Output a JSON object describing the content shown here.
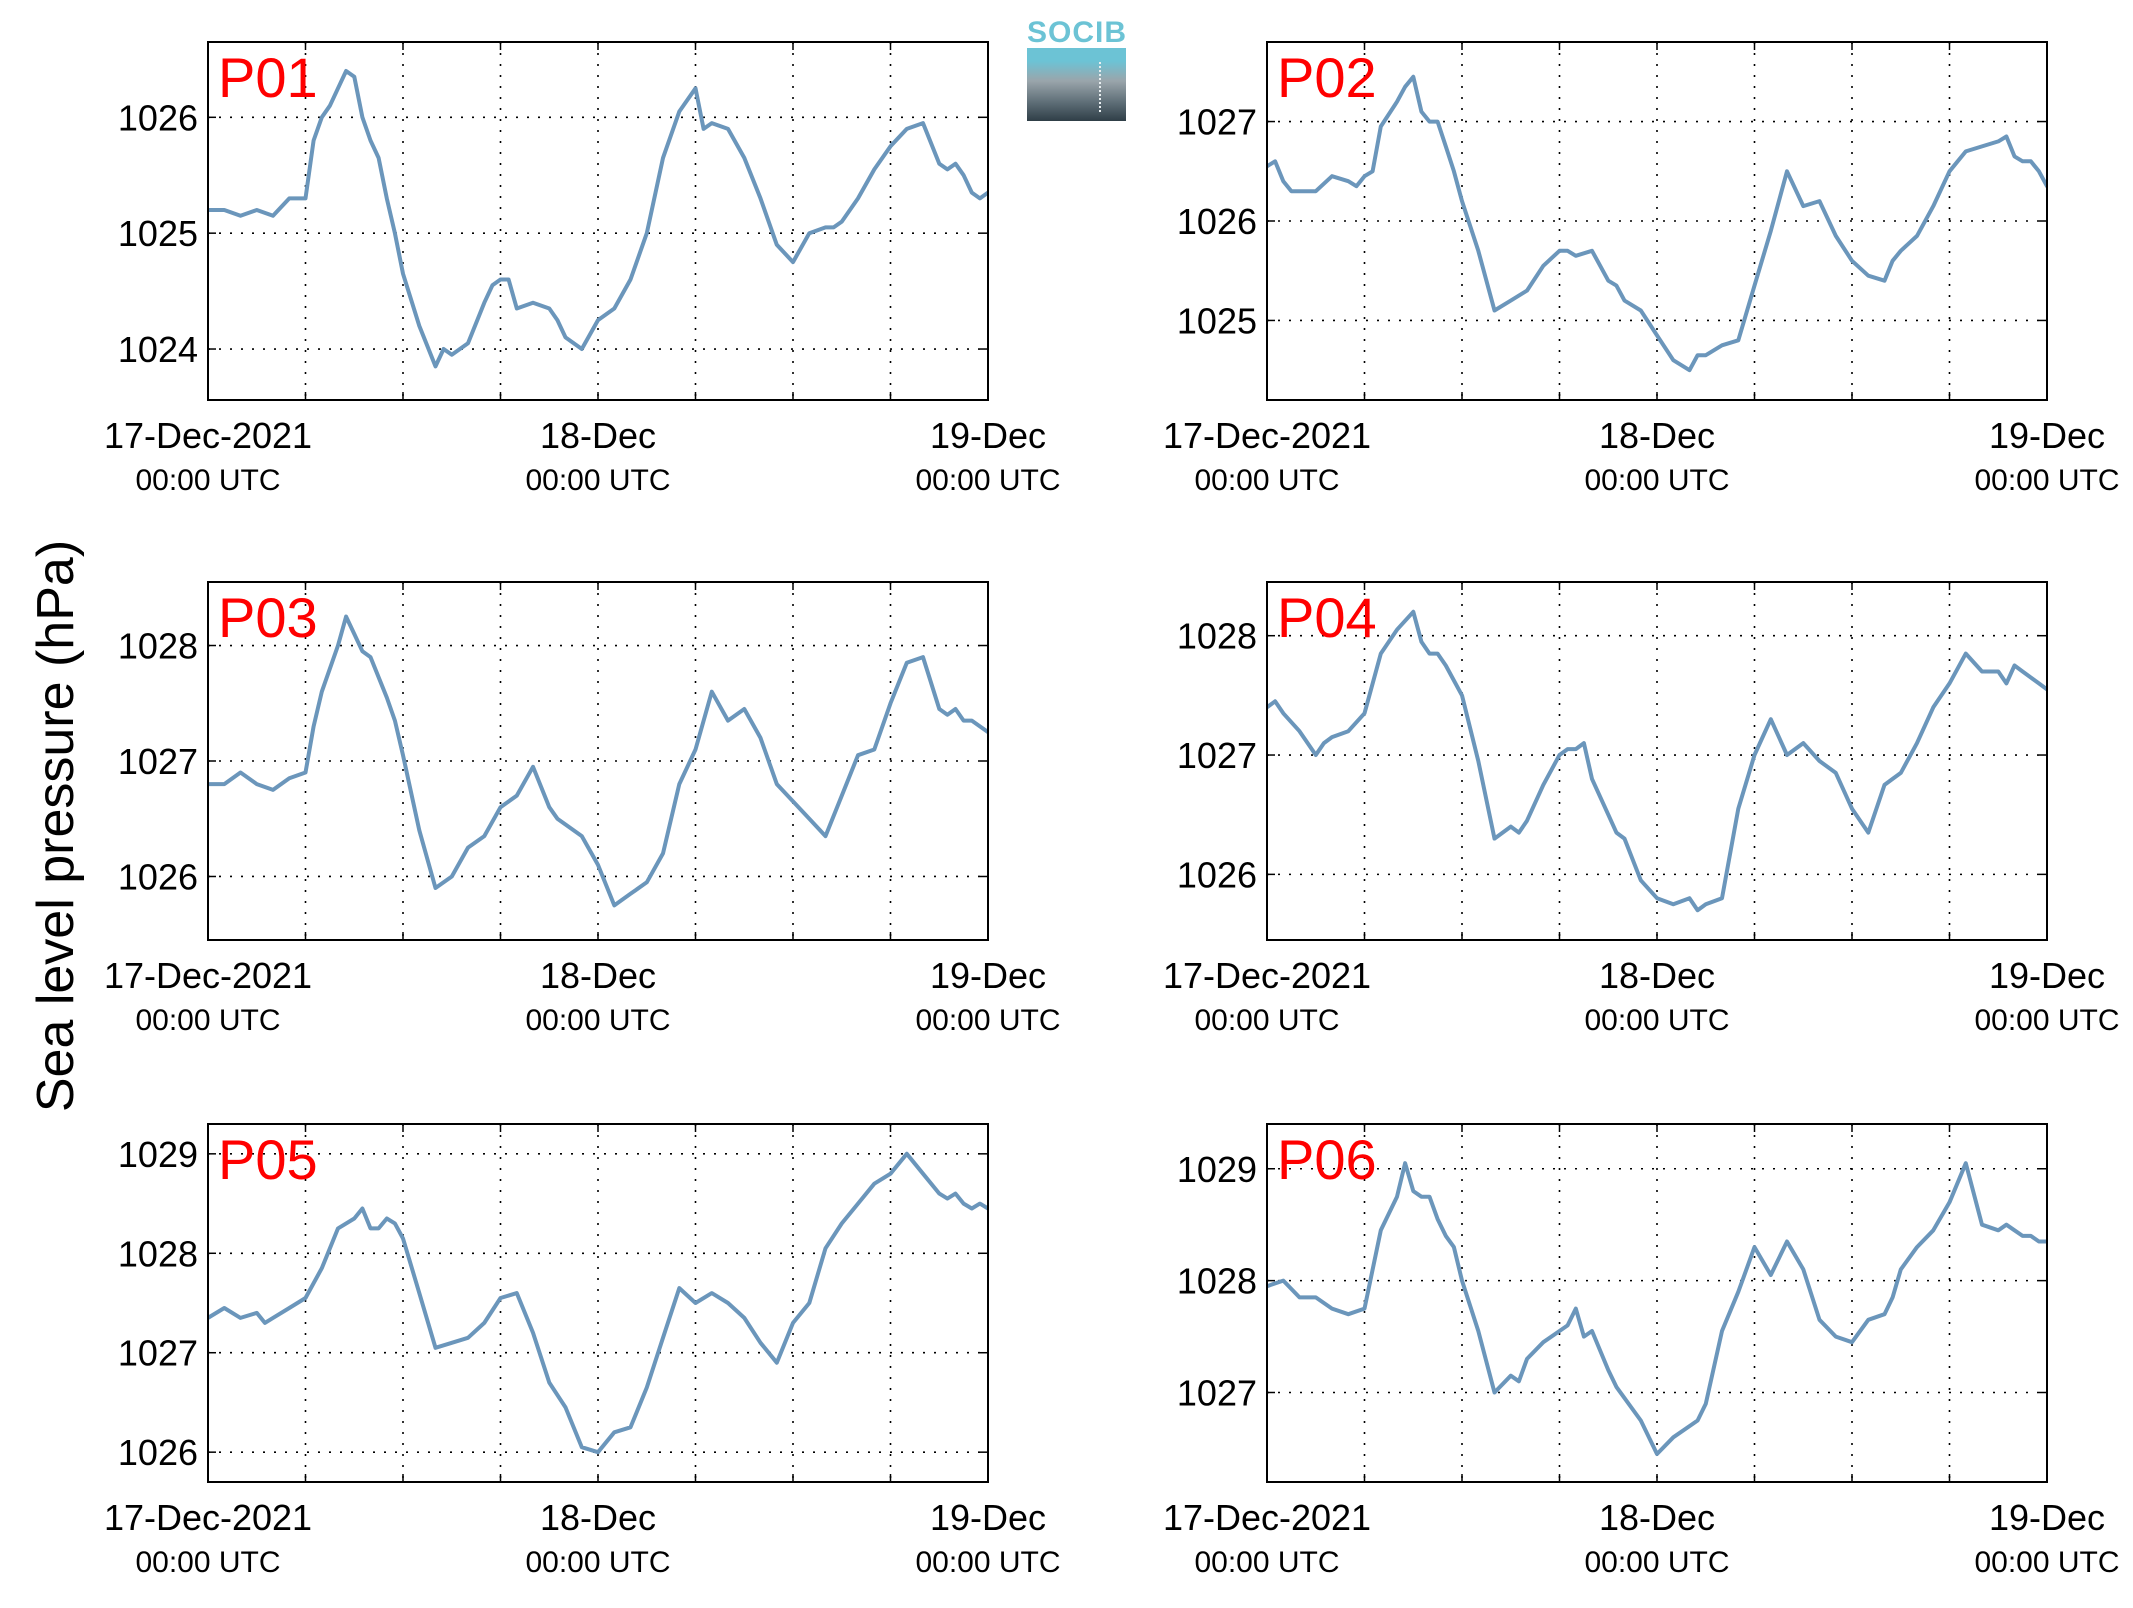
{
  "figure": {
    "ylabel": "Sea level pressure (hPa)",
    "logo_text": "SOCIB",
    "line_color": "#6b96bb",
    "label_color": "#ff0000"
  },
  "chart_data": [
    {
      "type": "line",
      "label": "P01",
      "x_unit": "hours since 17-Dec-2021 00:00 UTC",
      "xlim": [
        0,
        48
      ],
      "ylim": [
        1023.56,
        1026.65
      ],
      "yticks": [
        1024,
        1025,
        1026
      ],
      "x": [
        0,
        1,
        2,
        3,
        4,
        5,
        6,
        6.5,
        7,
        7.5,
        8,
        8.5,
        9,
        9.5,
        10,
        10.5,
        11,
        11.5,
        12,
        13,
        14,
        14.5,
        15,
        16,
        17,
        17.5,
        18,
        18.5,
        19,
        20,
        21,
        21.5,
        22,
        23,
        24,
        25,
        26,
        27,
        28,
        29,
        30,
        30.5,
        31,
        32,
        33,
        34,
        35,
        36,
        37,
        38,
        38.5,
        39,
        40,
        41,
        42,
        43,
        44,
        45,
        45.5,
        46,
        46.5,
        47,
        47.5,
        48
      ],
      "y": [
        1025.2,
        1025.2,
        1025.15,
        1025.2,
        1025.15,
        1025.3,
        1025.3,
        1025.8,
        1026.0,
        1026.1,
        1026.25,
        1026.4,
        1026.35,
        1026.0,
        1025.8,
        1025.65,
        1025.3,
        1025.0,
        1024.65,
        1024.2,
        1023.85,
        1024.0,
        1023.95,
        1024.05,
        1024.4,
        1024.55,
        1024.6,
        1024.6,
        1024.35,
        1024.4,
        1024.35,
        1024.25,
        1024.1,
        1024.0,
        1024.25,
        1024.35,
        1024.6,
        1025.0,
        1025.65,
        1026.05,
        1026.25,
        1025.9,
        1025.95,
        1025.9,
        1025.65,
        1025.3,
        1024.9,
        1024.75,
        1025.0,
        1025.05,
        1025.05,
        1025.1,
        1025.3,
        1025.55,
        1025.75,
        1025.9,
        1025.95,
        1025.6,
        1025.55,
        1025.6,
        1025.5,
        1025.35,
        1025.3,
        1025.35
      ]
    },
    {
      "type": "line",
      "label": "P02",
      "x_unit": "hours since 17-Dec-2021 00:00 UTC",
      "xlim": [
        0,
        48
      ],
      "ylim": [
        1024.2,
        1027.8
      ],
      "yticks": [
        1025,
        1026,
        1027
      ],
      "x": [
        0,
        0.5,
        1,
        1.5,
        2,
        3,
        4,
        5,
        5.5,
        6,
        6.5,
        7,
        8,
        8.5,
        9,
        9.5,
        10,
        10.5,
        11,
        11.5,
        12,
        13,
        14,
        15,
        16,
        17,
        18,
        18.5,
        19,
        20,
        21,
        21.5,
        22,
        23,
        24,
        25,
        26,
        26.5,
        27,
        28,
        29,
        30,
        31,
        32,
        33,
        34,
        35,
        36,
        37,
        38,
        38.5,
        39,
        40,
        41,
        42,
        43,
        44,
        45,
        45.5,
        46,
        46.5,
        47,
        47.5,
        48
      ],
      "y": [
        1026.55,
        1026.6,
        1026.4,
        1026.3,
        1026.3,
        1026.3,
        1026.45,
        1026.4,
        1026.35,
        1026.45,
        1026.5,
        1026.95,
        1027.2,
        1027.35,
        1027.45,
        1027.1,
        1027.0,
        1027.0,
        1026.75,
        1026.5,
        1026.2,
        1025.7,
        1025.1,
        1025.2,
        1025.3,
        1025.55,
        1025.7,
        1025.7,
        1025.65,
        1025.7,
        1025.4,
        1025.35,
        1025.2,
        1025.1,
        1024.85,
        1024.6,
        1024.5,
        1024.65,
        1024.65,
        1024.75,
        1024.8,
        1025.35,
        1025.9,
        1026.5,
        1026.15,
        1026.2,
        1025.85,
        1025.6,
        1025.45,
        1025.4,
        1025.6,
        1025.7,
        1025.85,
        1026.15,
        1026.5,
        1026.7,
        1026.75,
        1026.8,
        1026.85,
        1026.65,
        1026.6,
        1026.6,
        1026.5,
        1026.35
      ]
    },
    {
      "type": "line",
      "label": "P03",
      "x_unit": "hours since 17-Dec-2021 00:00 UTC",
      "xlim": [
        0,
        48
      ],
      "ylim": [
        1025.45,
        1028.55
      ],
      "yticks": [
        1026,
        1027,
        1028
      ],
      "x": [
        0,
        1,
        2,
        3,
        4,
        5,
        6,
        6.5,
        7,
        8,
        8.5,
        9,
        9.5,
        10,
        11,
        11.5,
        12,
        13,
        14,
        15,
        16,
        17,
        18,
        19,
        20,
        21,
        21.5,
        22,
        23,
        24,
        25,
        26,
        27,
        28,
        29,
        30,
        31,
        32,
        33,
        34,
        35,
        36,
        37,
        38,
        39,
        40,
        41,
        42,
        43,
        44,
        45,
        45.5,
        46,
        46.5,
        47,
        47.5,
        48
      ],
      "y": [
        1026.8,
        1026.8,
        1026.9,
        1026.8,
        1026.75,
        1026.85,
        1026.9,
        1027.3,
        1027.6,
        1028.0,
        1028.25,
        1028.1,
        1027.95,
        1027.9,
        1027.55,
        1027.35,
        1027.05,
        1026.4,
        1025.9,
        1026.0,
        1026.25,
        1026.35,
        1026.6,
        1026.7,
        1026.95,
        1026.6,
        1026.5,
        1026.45,
        1026.35,
        1026.1,
        1025.75,
        1025.85,
        1025.95,
        1026.2,
        1026.8,
        1027.1,
        1027.6,
        1027.35,
        1027.45,
        1027.2,
        1026.8,
        1026.65,
        1026.5,
        1026.35,
        1026.7,
        1027.05,
        1027.1,
        1027.5,
        1027.85,
        1027.9,
        1027.45,
        1027.4,
        1027.45,
        1027.35,
        1027.35,
        1027.3,
        1027.25
      ]
    },
    {
      "type": "line",
      "label": "P04",
      "x_unit": "hours since 17-Dec-2021 00:00 UTC",
      "xlim": [
        0,
        48
      ],
      "ylim": [
        1025.45,
        1028.45
      ],
      "yticks": [
        1026,
        1027,
        1028
      ],
      "x": [
        0,
        0.5,
        1,
        2,
        3,
        3.5,
        4,
        5,
        6,
        7,
        8,
        9,
        9.5,
        10,
        10.5,
        11,
        12,
        13,
        14,
        15,
        15.5,
        16,
        17,
        18,
        18.5,
        19,
        19.5,
        20,
        21,
        21.5,
        22,
        23,
        24,
        25,
        26,
        26.5,
        27,
        28,
        29,
        30,
        31,
        32,
        33,
        34,
        35,
        36,
        37,
        38,
        38.5,
        39,
        40,
        41,
        42,
        43,
        44,
        45,
        45.5,
        46,
        46.5,
        47,
        47.5,
        48
      ],
      "y": [
        1027.4,
        1027.45,
        1027.35,
        1027.2,
        1027.0,
        1027.1,
        1027.15,
        1027.2,
        1027.35,
        1027.85,
        1028.05,
        1028.2,
        1027.95,
        1027.85,
        1027.85,
        1027.75,
        1027.5,
        1026.95,
        1026.3,
        1026.4,
        1026.35,
        1026.45,
        1026.75,
        1027.0,
        1027.05,
        1027.05,
        1027.1,
        1026.8,
        1026.5,
        1026.35,
        1026.3,
        1025.95,
        1025.8,
        1025.75,
        1025.8,
        1025.7,
        1025.75,
        1025.8,
        1026.55,
        1027.0,
        1027.3,
        1027.0,
        1027.1,
        1026.95,
        1026.85,
        1026.55,
        1026.35,
        1026.75,
        1026.8,
        1026.85,
        1027.1,
        1027.4,
        1027.6,
        1027.85,
        1027.7,
        1027.7,
        1027.6,
        1027.75,
        1027.7,
        1027.65,
        1027.6,
        1027.55
      ]
    },
    {
      "type": "line",
      "label": "P05",
      "x_unit": "hours since 17-Dec-2021 00:00 UTC",
      "xlim": [
        0,
        48
      ],
      "ylim": [
        1025.7,
        1029.3
      ],
      "yticks": [
        1026,
        1027,
        1028,
        1029
      ],
      "x": [
        0,
        1,
        2,
        3,
        3.5,
        4,
        5,
        6,
        7,
        8,
        9,
        9.5,
        10,
        10.5,
        11,
        11.5,
        12,
        13,
        14,
        15,
        16,
        17,
        18,
        19,
        20,
        21,
        22,
        23,
        24,
        25,
        26,
        27,
        28,
        29,
        30,
        31,
        32,
        33,
        34,
        35,
        36,
        37,
        38,
        39,
        40,
        41,
        42,
        43,
        44,
        45,
        45.5,
        46,
        46.5,
        47,
        47.5,
        48
      ],
      "y": [
        1027.35,
        1027.45,
        1027.35,
        1027.4,
        1027.3,
        1027.35,
        1027.45,
        1027.55,
        1027.85,
        1028.25,
        1028.35,
        1028.45,
        1028.25,
        1028.25,
        1028.35,
        1028.3,
        1028.15,
        1027.6,
        1027.05,
        1027.1,
        1027.15,
        1027.3,
        1027.55,
        1027.6,
        1027.2,
        1026.7,
        1026.45,
        1026.05,
        1026.0,
        1026.2,
        1026.25,
        1026.65,
        1027.15,
        1027.65,
        1027.5,
        1027.6,
        1027.5,
        1027.35,
        1027.1,
        1026.9,
        1027.3,
        1027.5,
        1028.05,
        1028.3,
        1028.5,
        1028.7,
        1028.8,
        1029.0,
        1028.8,
        1028.6,
        1028.55,
        1028.6,
        1028.5,
        1028.45,
        1028.5,
        1028.45
      ]
    },
    {
      "type": "line",
      "label": "P06",
      "x_unit": "hours since 17-Dec-2021 00:00 UTC",
      "xlim": [
        0,
        48
      ],
      "ylim": [
        1026.2,
        1029.4
      ],
      "yticks": [
        1027,
        1028,
        1029
      ],
      "x": [
        0,
        1,
        2,
        3,
        4,
        5,
        6,
        7,
        8,
        8.5,
        9,
        9.5,
        10,
        10.5,
        11,
        11.5,
        12,
        13,
        14,
        15,
        15.5,
        16,
        17,
        18,
        18.5,
        19,
        19.5,
        20,
        21,
        21.5,
        22,
        23,
        24,
        25,
        26,
        26.5,
        27,
        28,
        29,
        30,
        31,
        32,
        33,
        34,
        35,
        36,
        37,
        38,
        38.5,
        39,
        40,
        41,
        42,
        43,
        44,
        45,
        45.5,
        46,
        46.5,
        47,
        47.5,
        48
      ],
      "y": [
        1027.95,
        1028.0,
        1027.85,
        1027.85,
        1027.75,
        1027.7,
        1027.75,
        1028.45,
        1028.75,
        1029.05,
        1028.8,
        1028.75,
        1028.75,
        1028.55,
        1028.4,
        1028.3,
        1028.0,
        1027.55,
        1027.0,
        1027.15,
        1027.1,
        1027.3,
        1027.45,
        1027.55,
        1027.6,
        1027.75,
        1027.5,
        1027.55,
        1027.2,
        1027.05,
        1026.95,
        1026.75,
        1026.45,
        1026.6,
        1026.7,
        1026.75,
        1026.9,
        1027.55,
        1027.9,
        1028.3,
        1028.05,
        1028.35,
        1028.1,
        1027.65,
        1027.5,
        1027.45,
        1027.65,
        1027.7,
        1027.85,
        1028.1,
        1028.3,
        1028.45,
        1028.7,
        1029.05,
        1028.5,
        1028.45,
        1028.5,
        1028.45,
        1028.4,
        1028.4,
        1028.35,
        1028.35
      ]
    }
  ],
  "xticks": [
    {
      "x": 0,
      "line1": "17-Dec-2021",
      "line2": "00:00 UTC"
    },
    {
      "x": 24,
      "line1": "18-Dec",
      "line2": "00:00 UTC"
    },
    {
      "x": 48,
      "line1": "19-Dec",
      "line2": "00:00 UTC"
    }
  ],
  "xgrid": [
    6,
    12,
    18,
    24,
    30,
    36,
    42
  ]
}
